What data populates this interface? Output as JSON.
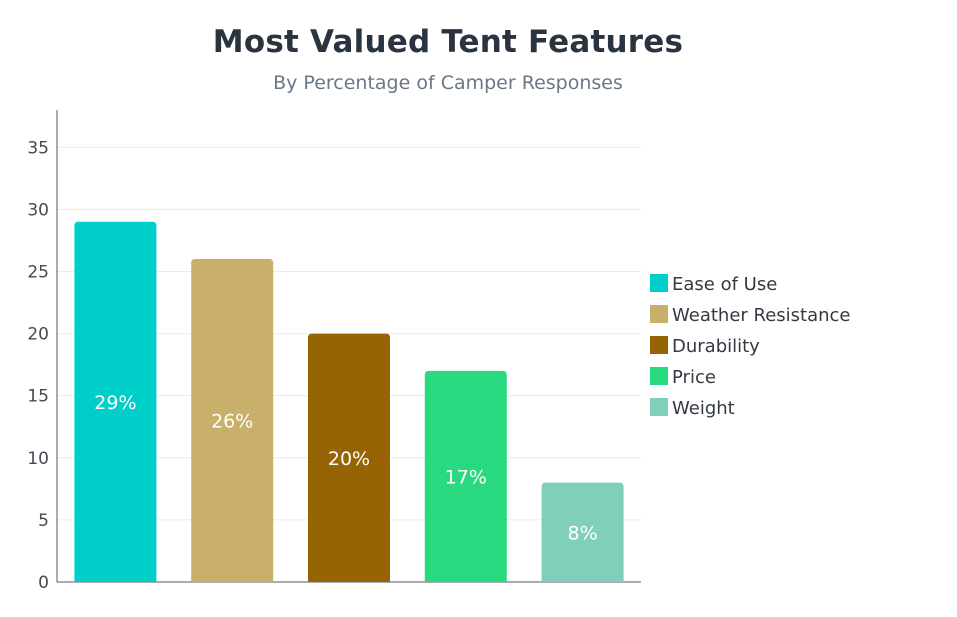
{
  "chart_data": {
    "type": "bar",
    "title": "Most Valued Tent Features",
    "subtitle": "By Percentage of Camper Responses",
    "xlabel": "",
    "ylabel": "",
    "categories": [
      "Ease of Use",
      "Weather Resistance",
      "Durability",
      "Price",
      "Weight"
    ],
    "values": [
      29,
      26,
      20,
      17,
      8
    ],
    "data_labels": [
      "29%",
      "26%",
      "20%",
      "17%",
      "8%"
    ],
    "colors": [
      "#00cec9",
      "#c8b06a",
      "#966405",
      "#28d97f",
      "#80cfbb"
    ],
    "ylim": [
      0,
      38
    ],
    "yticks": [
      0,
      5,
      10,
      15,
      20,
      25,
      30,
      35
    ],
    "grid": true,
    "legend": "right"
  }
}
